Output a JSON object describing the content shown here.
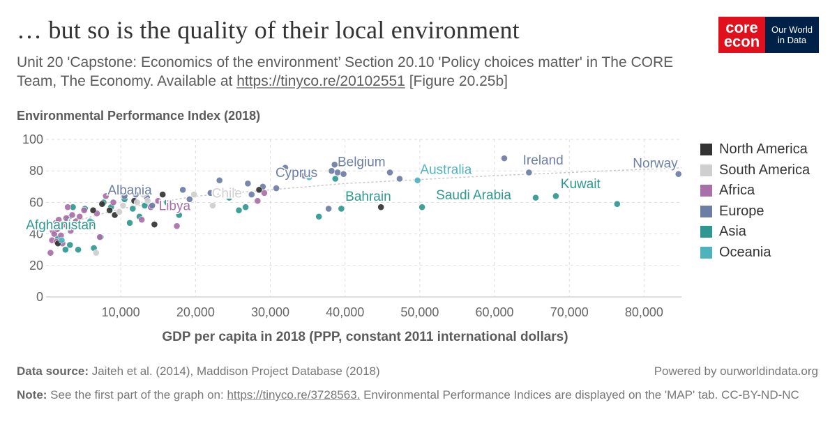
{
  "header": {
    "title": "… but so is the quality of their local environment",
    "subtitle_pre": "Unit 20 'Capstone: Economics of the environment’ Section 20.10 'Policy choices matter' in The CORE Team, The Economy. Available at ",
    "subtitle_link": "https://tinyco.re/20102551",
    "subtitle_post": " [Figure 20.25b]"
  },
  "logos": {
    "core_line1": "core",
    "core_line2": "econ",
    "owid_line1": "Our World",
    "owid_line2": "in Data"
  },
  "colors": {
    "North America": "#333333",
    "South America": "#cfcfcf",
    "Africa": "#a96fa8",
    "Europe": "#6d7ea6",
    "Asia": "#2e9890",
    "Oceania": "#4fb3bd"
  },
  "chart_data": {
    "type": "scatter",
    "ylabel": "Environmental Performance Index (2018)",
    "xlabel": "GDP per capita in 2018 (PPP, constant 2011 international dollars)",
    "xlim": [
      0,
      85000
    ],
    "ylim": [
      0,
      100
    ],
    "xticks": [
      10000,
      20000,
      30000,
      40000,
      50000,
      60000,
      70000,
      80000
    ],
    "xtick_labels": [
      "10,000",
      "20,000",
      "30,000",
      "40,000",
      "50,000",
      "60,000",
      "70,000",
      "80,000"
    ],
    "yticks": [
      0,
      20,
      40,
      60,
      80,
      100
    ],
    "ytick_labels": [
      "0",
      "20",
      "40",
      "60",
      "80",
      "100"
    ],
    "grid": true,
    "legend_position": "right",
    "legend": [
      "North America",
      "South America",
      "Africa",
      "Europe",
      "Asia",
      "Oceania"
    ],
    "trend_line": [
      [
        1500,
        45
      ],
      [
        10000,
        56
      ],
      [
        20000,
        64
      ],
      [
        40000,
        72
      ],
      [
        60000,
        77
      ],
      [
        85000,
        82
      ]
    ],
    "labels": [
      {
        "text": "Afghanistan",
        "x": 2000,
        "y": 43,
        "region": "Asia"
      },
      {
        "text": "Albania",
        "x": 11200,
        "y": 65,
        "region": "Europe"
      },
      {
        "text": "Libya",
        "x": 17200,
        "y": 55,
        "region": "Africa"
      },
      {
        "text": "Chile",
        "x": 24200,
        "y": 63,
        "region": "South America"
      },
      {
        "text": "Cyprus",
        "x": 33500,
        "y": 76,
        "region": "Europe"
      },
      {
        "text": "Belgium",
        "x": 42200,
        "y": 83,
        "region": "Europe"
      },
      {
        "text": "Bahrain",
        "x": 43100,
        "y": 61,
        "region": "Asia"
      },
      {
        "text": "Australia",
        "x": 53500,
        "y": 78,
        "region": "Oceania"
      },
      {
        "text": "Saudi Arabia",
        "x": 57200,
        "y": 62,
        "region": "Asia"
      },
      {
        "text": "Ireland",
        "x": 66500,
        "y": 84,
        "region": "Europe"
      },
      {
        "text": "Kuwait",
        "x": 71500,
        "y": 69,
        "region": "Asia"
      },
      {
        "text": "Norway",
        "x": 81500,
        "y": 82,
        "region": "Europe"
      }
    ],
    "points": [
      {
        "x": 1800,
        "y": 44,
        "region": "Asia"
      },
      {
        "x": 1600,
        "y": 37,
        "region": "Asia"
      },
      {
        "x": 2600,
        "y": 30,
        "region": "Asia"
      },
      {
        "x": 3200,
        "y": 33,
        "region": "Asia"
      },
      {
        "x": 3600,
        "y": 57,
        "region": "Asia"
      },
      {
        "x": 4300,
        "y": 30,
        "region": "Asia"
      },
      {
        "x": 5200,
        "y": 56,
        "region": "Asia"
      },
      {
        "x": 6200,
        "y": 47,
        "region": "Asia"
      },
      {
        "x": 7300,
        "y": 38,
        "region": "Asia"
      },
      {
        "x": 7700,
        "y": 60,
        "region": "Asia"
      },
      {
        "x": 8700,
        "y": 57,
        "region": "Asia"
      },
      {
        "x": 10500,
        "y": 62,
        "region": "Asia"
      },
      {
        "x": 11200,
        "y": 47,
        "region": "Asia"
      },
      {
        "x": 11600,
        "y": 56,
        "region": "Asia"
      },
      {
        "x": 12500,
        "y": 51,
        "region": "Asia"
      },
      {
        "x": 13200,
        "y": 58,
        "region": "Asia"
      },
      {
        "x": 16200,
        "y": 60,
        "region": "Asia"
      },
      {
        "x": 17800,
        "y": 52,
        "region": "Asia"
      },
      {
        "x": 24500,
        "y": 63,
        "region": "Asia"
      },
      {
        "x": 25800,
        "y": 55,
        "region": "Asia"
      },
      {
        "x": 26700,
        "y": 57,
        "region": "Asia"
      },
      {
        "x": 36500,
        "y": 51,
        "region": "Asia"
      },
      {
        "x": 39500,
        "y": 56,
        "region": "Asia"
      },
      {
        "x": 50300,
        "y": 57,
        "region": "Asia"
      },
      {
        "x": 65500,
        "y": 63,
        "region": "Asia"
      },
      {
        "x": 68200,
        "y": 64,
        "region": "Asia"
      },
      {
        "x": 76400,
        "y": 59,
        "region": "Asia"
      },
      {
        "x": 38700,
        "y": 75,
        "region": "Asia"
      },
      {
        "x": 3000,
        "y": 50,
        "region": "Asia"
      },
      {
        "x": 6400,
        "y": 31,
        "region": "Asia"
      },
      {
        "x": 600,
        "y": 28,
        "region": "Africa"
      },
      {
        "x": 800,
        "y": 36,
        "region": "Africa"
      },
      {
        "x": 900,
        "y": 42,
        "region": "Africa"
      },
      {
        "x": 1000,
        "y": 45,
        "region": "Africa"
      },
      {
        "x": 1100,
        "y": 40,
        "region": "Africa"
      },
      {
        "x": 1300,
        "y": 47,
        "region": "Africa"
      },
      {
        "x": 1400,
        "y": 35,
        "region": "Africa"
      },
      {
        "x": 1500,
        "y": 43,
        "region": "Africa"
      },
      {
        "x": 1700,
        "y": 49,
        "region": "Africa"
      },
      {
        "x": 2000,
        "y": 39,
        "region": "Africa"
      },
      {
        "x": 2200,
        "y": 34,
        "region": "Africa"
      },
      {
        "x": 2400,
        "y": 46,
        "region": "Africa"
      },
      {
        "x": 2700,
        "y": 50,
        "region": "Africa"
      },
      {
        "x": 2900,
        "y": 57,
        "region": "Africa"
      },
      {
        "x": 3300,
        "y": 42,
        "region": "Africa"
      },
      {
        "x": 3500,
        "y": 52,
        "region": "Africa"
      },
      {
        "x": 4000,
        "y": 48,
        "region": "Africa"
      },
      {
        "x": 4500,
        "y": 51,
        "region": "Africa"
      },
      {
        "x": 5100,
        "y": 55,
        "region": "Africa"
      },
      {
        "x": 5800,
        "y": 47,
        "region": "Africa"
      },
      {
        "x": 6800,
        "y": 53,
        "region": "Africa"
      },
      {
        "x": 7200,
        "y": 38,
        "region": "Africa"
      },
      {
        "x": 8000,
        "y": 64,
        "region": "Africa"
      },
      {
        "x": 9000,
        "y": 60,
        "region": "Africa"
      },
      {
        "x": 12800,
        "y": 49,
        "region": "Africa"
      },
      {
        "x": 14000,
        "y": 57,
        "region": "Africa"
      },
      {
        "x": 15000,
        "y": 61,
        "region": "Africa"
      },
      {
        "x": 17500,
        "y": 45,
        "region": "Africa"
      },
      {
        "x": 28300,
        "y": 61,
        "region": "Africa"
      },
      {
        "x": 29200,
        "y": 66,
        "region": "Africa"
      },
      {
        "x": 10500,
        "y": 64,
        "region": "Europe"
      },
      {
        "x": 12000,
        "y": 65,
        "region": "Europe"
      },
      {
        "x": 13500,
        "y": 63,
        "region": "Europe"
      },
      {
        "x": 14200,
        "y": 58,
        "region": "Europe"
      },
      {
        "x": 16500,
        "y": 59,
        "region": "Europe"
      },
      {
        "x": 18300,
        "y": 68,
        "region": "Europe"
      },
      {
        "x": 19200,
        "y": 62,
        "region": "Europe"
      },
      {
        "x": 22000,
        "y": 66,
        "region": "Europe"
      },
      {
        "x": 23200,
        "y": 74,
        "region": "Europe"
      },
      {
        "x": 25000,
        "y": 67,
        "region": "Europe"
      },
      {
        "x": 27000,
        "y": 72,
        "region": "Europe"
      },
      {
        "x": 27500,
        "y": 65,
        "region": "Europe"
      },
      {
        "x": 29000,
        "y": 70,
        "region": "Europe"
      },
      {
        "x": 30800,
        "y": 69,
        "region": "Europe"
      },
      {
        "x": 32000,
        "y": 82,
        "region": "Europe"
      },
      {
        "x": 34500,
        "y": 77,
        "region": "Europe"
      },
      {
        "x": 37800,
        "y": 56,
        "region": "Europe"
      },
      {
        "x": 38200,
        "y": 80,
        "region": "Europe"
      },
      {
        "x": 38600,
        "y": 84,
        "region": "Europe"
      },
      {
        "x": 39000,
        "y": 79,
        "region": "Europe"
      },
      {
        "x": 39800,
        "y": 78,
        "region": "Europe"
      },
      {
        "x": 46000,
        "y": 79,
        "region": "Europe"
      },
      {
        "x": 47300,
        "y": 75,
        "region": "Europe"
      },
      {
        "x": 61300,
        "y": 88,
        "region": "Europe"
      },
      {
        "x": 64600,
        "y": 79,
        "region": "Europe"
      },
      {
        "x": 84600,
        "y": 78,
        "region": "Europe"
      },
      {
        "x": 1600,
        "y": 34,
        "region": "North America"
      },
      {
        "x": 6300,
        "y": 55,
        "region": "North America"
      },
      {
        "x": 7500,
        "y": 59,
        "region": "North America"
      },
      {
        "x": 8500,
        "y": 55,
        "region": "North America"
      },
      {
        "x": 9200,
        "y": 52,
        "region": "North America"
      },
      {
        "x": 11800,
        "y": 61,
        "region": "North America"
      },
      {
        "x": 14500,
        "y": 46,
        "region": "North America"
      },
      {
        "x": 15600,
        "y": 65,
        "region": "North America"
      },
      {
        "x": 28500,
        "y": 68,
        "region": "North America"
      },
      {
        "x": 44800,
        "y": 57,
        "region": "North America"
      },
      {
        "x": 6700,
        "y": 28,
        "region": "South America"
      },
      {
        "x": 9800,
        "y": 54,
        "region": "South America"
      },
      {
        "x": 10300,
        "y": 58,
        "region": "South America"
      },
      {
        "x": 12200,
        "y": 60,
        "region": "South America"
      },
      {
        "x": 13000,
        "y": 65,
        "region": "South America"
      },
      {
        "x": 13600,
        "y": 61,
        "region": "South America"
      },
      {
        "x": 19800,
        "y": 65,
        "region": "South America"
      },
      {
        "x": 22300,
        "y": 58,
        "region": "South America"
      },
      {
        "x": 2100,
        "y": 36,
        "region": "Oceania"
      },
      {
        "x": 5900,
        "y": 48,
        "region": "Oceania"
      },
      {
        "x": 35200,
        "y": 76,
        "region": "Oceania"
      },
      {
        "x": 49700,
        "y": 74,
        "region": "Oceania"
      }
    ]
  },
  "footer": {
    "source_label": "Data source:",
    "source_text": " Jaiteh et al. (2014), Maddison Project Database (2018)",
    "note_label": "Note:",
    "note_pre": " See the first part of the graph on: ",
    "note_link": "https://tinyco.re/3728563.",
    "note_post": " Environmental Performance Indices are displayed on the 'MAP' tab. CC-BY-ND-NC",
    "powered": "Powered by ourworldindata.org"
  }
}
